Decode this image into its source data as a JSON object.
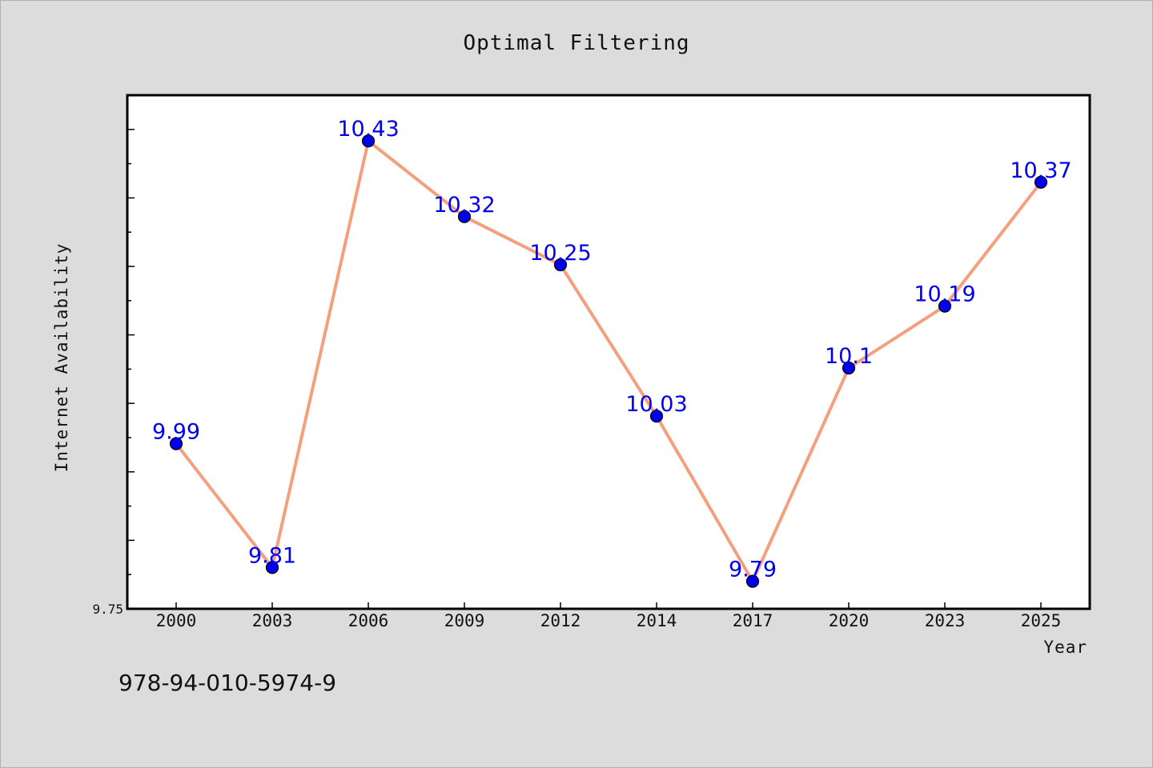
{
  "chart_data": {
    "type": "line",
    "title": "Optimal Filtering",
    "xlabel": "Year",
    "ylabel": "Internet Availability",
    "categories": [
      "2000",
      "2003",
      "2006",
      "2009",
      "2012",
      "2014",
      "2017",
      "2020",
      "2023",
      "2025"
    ],
    "series": [
      {
        "values": [
          9.99,
          9.81,
          10.43,
          10.32,
          10.25,
          10.03,
          9.79,
          10.1,
          10.19,
          10.37
        ]
      }
    ],
    "y_min_label": "9.75",
    "ylim": [
      9.75,
      10.5
    ],
    "grid": false,
    "legend": "none",
    "line_color": "#f4a07e",
    "marker_color": "#0000ee",
    "label_color": "#0000ee"
  },
  "footer": {
    "isbn": "978-94-010-5974-9"
  }
}
